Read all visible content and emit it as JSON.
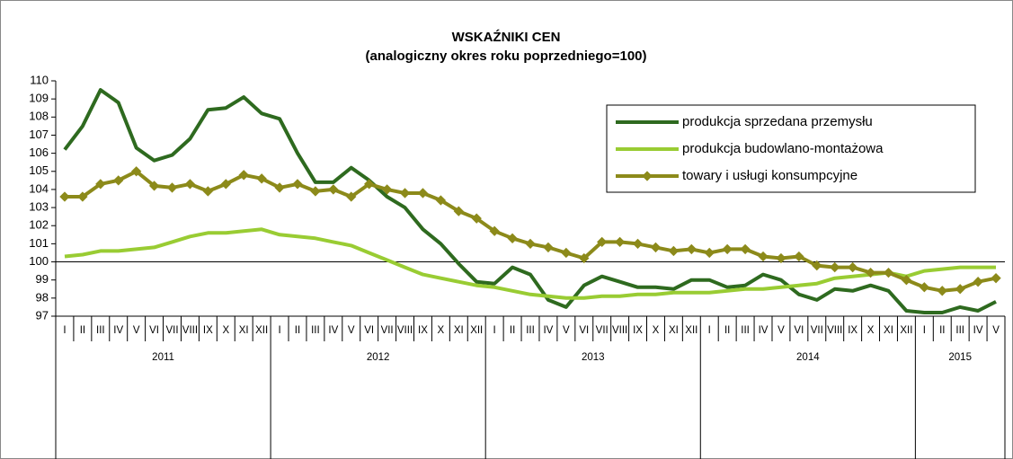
{
  "chart_data": {
    "type": "line",
    "title": "WSKAŹNIKI CEN",
    "subtitle": "(analogiczny okres roku poprzedniego=100)",
    "categories": [
      "I",
      "II",
      "III",
      "IV",
      "V",
      "VI",
      "VII",
      "VIII",
      "IX",
      "X",
      "XI",
      "XII",
      "I",
      "II",
      "III",
      "IV",
      "V",
      "VI",
      "VII",
      "VIII",
      "IX",
      "X",
      "XI",
      "XII",
      "I",
      "II",
      "III",
      "IV",
      "V",
      "VI",
      "VII",
      "VIII",
      "IX",
      "X",
      "XI",
      "XII",
      "I",
      "II",
      "III",
      "IV",
      "V",
      "VI",
      "VII",
      "VIII",
      "IX",
      "X",
      "XI",
      "XII",
      "I",
      "II",
      "III",
      "IV",
      "V"
    ],
    "years": [
      "2011",
      "2012",
      "2013",
      "2014",
      "2015"
    ],
    "series": [
      {
        "name": "produkcja sprzedana przemysłu",
        "color": "#2e6a1f",
        "markers": false,
        "values": [
          106.2,
          107.5,
          109.5,
          108.8,
          106.3,
          105.6,
          105.9,
          106.8,
          108.4,
          108.5,
          109.1,
          108.2,
          107.9,
          106.0,
          104.4,
          104.4,
          105.2,
          104.5,
          103.6,
          103.0,
          101.8,
          101.0,
          99.9,
          98.9,
          98.8,
          99.7,
          99.3,
          97.9,
          97.5,
          98.7,
          99.2,
          98.9,
          98.6,
          98.6,
          98.5,
          99.0,
          99.0,
          98.6,
          98.7,
          99.3,
          99.0,
          98.2,
          97.9,
          98.5,
          98.4,
          98.7,
          98.4,
          97.3,
          97.2,
          97.2,
          97.5,
          97.3,
          97.8
        ]
      },
      {
        "name": "produkcja budowlano-montażowa",
        "color": "#99cc33",
        "markers": false,
        "values": [
          100.3,
          100.4,
          100.6,
          100.6,
          100.7,
          100.8,
          101.1,
          101.4,
          101.6,
          101.6,
          101.7,
          101.8,
          101.5,
          101.4,
          101.3,
          101.1,
          100.9,
          100.5,
          100.1,
          99.7,
          99.3,
          99.1,
          98.9,
          98.7,
          98.6,
          98.4,
          98.2,
          98.1,
          98.0,
          98.0,
          98.1,
          98.1,
          98.2,
          98.2,
          98.3,
          98.3,
          98.3,
          98.4,
          98.5,
          98.5,
          98.6,
          98.7,
          98.8,
          99.1,
          99.2,
          99.3,
          99.4,
          99.2,
          99.5,
          99.6,
          99.7,
          99.7,
          99.7
        ]
      },
      {
        "name": "towary i usługi konsumpcyjne",
        "color": "#8c8a1a",
        "markers": true,
        "values": [
          103.6,
          103.6,
          104.3,
          104.5,
          105.0,
          104.2,
          104.1,
          104.3,
          103.9,
          104.3,
          104.8,
          104.6,
          104.1,
          104.3,
          103.9,
          104.0,
          103.6,
          104.3,
          104.0,
          103.8,
          103.8,
          103.4,
          102.8,
          102.4,
          101.7,
          101.3,
          101.0,
          100.8,
          100.5,
          100.2,
          101.1,
          101.1,
          101.0,
          100.8,
          100.6,
          100.7,
          100.5,
          100.7,
          100.7,
          100.3,
          100.2,
          100.3,
          99.8,
          99.7,
          99.7,
          99.4,
          99.4,
          99.0,
          98.6,
          98.4,
          98.5,
          98.9,
          99.1
        ]
      }
    ],
    "ylim": [
      97,
      110
    ],
    "yticks": [
      97,
      98,
      99,
      100,
      101,
      102,
      103,
      104,
      105,
      106,
      107,
      108,
      109,
      110
    ],
    "baseline": 100,
    "grid": false
  }
}
